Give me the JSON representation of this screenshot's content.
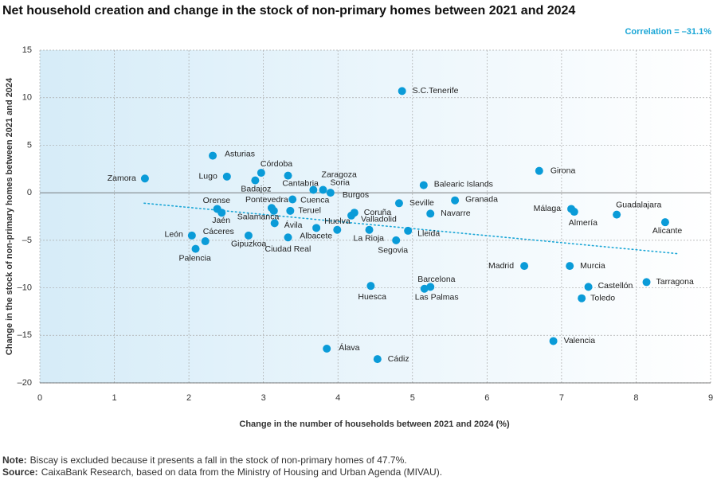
{
  "chart_data": {
    "type": "scatter",
    "title": "Net household creation and change in the stock of non-primary homes between 2021 and 2024",
    "annotation": "Correlation = –31.1%",
    "x_label": "Change in the number of households between 2021 and 2024 (%)",
    "y_label": "Change in the stock of non-primary homes between 2021 and 2024",
    "color": "#0a9bd8",
    "trend_color": "#1aa6d6",
    "labels": [
      "S.C.Tenerife",
      "Asturias",
      "Córdoba",
      "Zamora",
      "Lugo",
      "Badajoz",
      "Zaragoza",
      "Cantabria",
      "Soria",
      "Burgos",
      "Balearic Islands",
      "Girona",
      "Granada",
      "Seville",
      "Cuenca",
      "Pontevedra",
      "Orense",
      "Jaén",
      "Teruel",
      "Salamanca",
      "Coruña",
      "Navarre",
      "Valladolid",
      "Málaga",
      "Almería",
      "Guadalajara",
      "Alicante",
      "Ávila",
      "Huelva",
      "La Rioja",
      "Lleida",
      "Albacete",
      "León",
      "Cáceres",
      "Gipuzkoa",
      "Ciudad Real",
      "Segovia",
      "Palencia",
      "Madrid",
      "Murcia",
      "Tarragona",
      "Barcelona",
      "Las Palmas",
      "Huesca",
      "Castellón",
      "Toledo",
      "Valencia",
      "Álava",
      "Cádiz"
    ],
    "x": [
      4.86,
      2.32,
      2.97,
      1.41,
      2.51,
      2.89,
      3.33,
      3.67,
      3.8,
      3.9,
      5.15,
      6.7,
      5.57,
      4.82,
      3.39,
      3.11,
      2.38,
      2.44,
      3.36,
      3.14,
      4.22,
      5.24,
      4.18,
      7.13,
      7.17,
      7.74,
      8.39,
      3.15,
      3.71,
      4.42,
      4.94,
      3.99,
      2.04,
      2.22,
      2.8,
      3.33,
      4.78,
      2.09,
      6.5,
      7.11,
      8.14,
      5.24,
      5.16,
      4.44,
      7.36,
      7.27,
      6.89,
      3.85,
      4.53
    ],
    "y": [
      10.7,
      3.9,
      2.1,
      1.5,
      1.7,
      1.3,
      1.8,
      0.3,
      0.3,
      0.0,
      0.8,
      2.3,
      -0.8,
      -1.1,
      -0.7,
      -1.6,
      -1.7,
      -2.1,
      -1.9,
      -1.9,
      -2.1,
      -2.2,
      -2.4,
      -1.7,
      -2.0,
      -2.3,
      -3.1,
      -3.2,
      -3.7,
      -3.9,
      -4.0,
      -3.9,
      -4.5,
      -5.1,
      -4.5,
      -4.7,
      -5.0,
      -5.9,
      -7.7,
      -7.7,
      -9.4,
      -9.9,
      -10.1,
      -9.8,
      -9.9,
      -11.1,
      -15.6,
      -16.4,
      -17.5
    ],
    "trendline": {
      "x": [
        1.4,
        8.55
      ],
      "y": [
        -1.1,
        -6.4
      ]
    },
    "xlim": [
      0,
      9
    ],
    "xticks": [
      0,
      1,
      2,
      3,
      4,
      5,
      6,
      7,
      8,
      9
    ],
    "ylim": [
      -20,
      15
    ],
    "yticks": [
      {
        "value": -20,
        "label": "–20"
      },
      {
        "value": -15,
        "label": "–15"
      },
      {
        "value": -10,
        "label": "–10"
      },
      {
        "value": -5,
        "label": "–5"
      },
      0,
      5,
      10,
      15
    ],
    "grid": true,
    "note": {
      "label": "Note:",
      "text": "Biscay is excluded because it presents a fall in the stock of non-primary homes of 47.7%."
    },
    "source": {
      "label": "Source:",
      "text": "CaixaBank Research, based on data from the Ministry of Housing and Urban Agenda (MIVAU)."
    }
  }
}
